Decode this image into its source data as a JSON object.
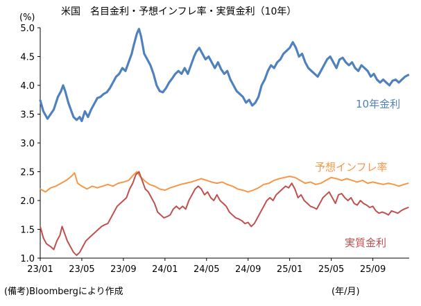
{
  "chart_data": {
    "type": "line",
    "title": "米国　名目金利・予想インフレ率・実質金利（10年）",
    "unit_label": "(%)",
    "source_note": "(備考)Bloombergにより作成",
    "xlabel": "(年/月)",
    "ylim": [
      1.0,
      5.0
    ],
    "y_ticks": [
      "5.0",
      "4.5",
      "4.0",
      "3.5",
      "3.0",
      "2.5",
      "2.0",
      "1.5",
      "1.0"
    ],
    "x_ticks": [
      "23/01",
      "23/05",
      "23/09",
      "24/01",
      "24/05",
      "24/09",
      "25/01",
      "25/05",
      "25/09"
    ],
    "x_tick_months": [
      0,
      4,
      8,
      12,
      16,
      20,
      24,
      28,
      32
    ],
    "x_range_months": [
      0,
      35.5
    ],
    "grid": false,
    "series": [
      {
        "name": "10年金利",
        "color": "#4f81bd",
        "points": [
          [
            0,
            3.74
          ],
          [
            0.3,
            3.55
          ],
          [
            0.7,
            3.42
          ],
          [
            1.0,
            3.5
          ],
          [
            1.3,
            3.58
          ],
          [
            1.7,
            3.8
          ],
          [
            2.0,
            3.9
          ],
          [
            2.2,
            4.0
          ],
          [
            2.4,
            3.9
          ],
          [
            2.7,
            3.7
          ],
          [
            3.0,
            3.55
          ],
          [
            3.2,
            3.45
          ],
          [
            3.5,
            3.4
          ],
          [
            3.8,
            3.45
          ],
          [
            4.0,
            3.38
          ],
          [
            4.3,
            3.55
          ],
          [
            4.6,
            3.45
          ],
          [
            4.9,
            3.58
          ],
          [
            5.2,
            3.68
          ],
          [
            5.5,
            3.78
          ],
          [
            5.8,
            3.8
          ],
          [
            6.1,
            3.85
          ],
          [
            6.4,
            3.88
          ],
          [
            6.7,
            3.95
          ],
          [
            7.0,
            4.05
          ],
          [
            7.3,
            4.15
          ],
          [
            7.6,
            4.2
          ],
          [
            7.9,
            4.3
          ],
          [
            8.2,
            4.25
          ],
          [
            8.5,
            4.4
          ],
          [
            8.8,
            4.55
          ],
          [
            9.0,
            4.7
          ],
          [
            9.3,
            4.9
          ],
          [
            9.5,
            4.98
          ],
          [
            9.7,
            4.85
          ],
          [
            10.0,
            4.55
          ],
          [
            10.3,
            4.45
          ],
          [
            10.6,
            4.35
          ],
          [
            10.9,
            4.2
          ],
          [
            11.2,
            4.0
          ],
          [
            11.5,
            3.9
          ],
          [
            11.8,
            3.88
          ],
          [
            12.1,
            3.95
          ],
          [
            12.4,
            4.05
          ],
          [
            12.7,
            4.12
          ],
          [
            13.0,
            4.2
          ],
          [
            13.3,
            4.25
          ],
          [
            13.6,
            4.2
          ],
          [
            13.9,
            4.3
          ],
          [
            14.2,
            4.2
          ],
          [
            14.5,
            4.35
          ],
          [
            14.8,
            4.5
          ],
          [
            15.0,
            4.58
          ],
          [
            15.3,
            4.65
          ],
          [
            15.6,
            4.55
          ],
          [
            15.9,
            4.45
          ],
          [
            16.2,
            4.5
          ],
          [
            16.5,
            4.4
          ],
          [
            16.8,
            4.3
          ],
          [
            17.1,
            4.4
          ],
          [
            17.4,
            4.28
          ],
          [
            17.7,
            4.2
          ],
          [
            18.0,
            4.25
          ],
          [
            18.3,
            4.1
          ],
          [
            18.6,
            4.0
          ],
          [
            18.9,
            3.9
          ],
          [
            19.2,
            3.85
          ],
          [
            19.5,
            3.8
          ],
          [
            19.8,
            3.7
          ],
          [
            20.1,
            3.75
          ],
          [
            20.4,
            3.65
          ],
          [
            20.7,
            3.7
          ],
          [
            21.0,
            3.8
          ],
          [
            21.3,
            4.0
          ],
          [
            21.6,
            4.1
          ],
          [
            21.9,
            4.25
          ],
          [
            22.2,
            4.35
          ],
          [
            22.5,
            4.3
          ],
          [
            22.8,
            4.4
          ],
          [
            23.1,
            4.45
          ],
          [
            23.4,
            4.55
          ],
          [
            23.7,
            4.6
          ],
          [
            24.0,
            4.65
          ],
          [
            24.3,
            4.75
          ],
          [
            24.6,
            4.65
          ],
          [
            24.9,
            4.5
          ],
          [
            25.2,
            4.55
          ],
          [
            25.5,
            4.4
          ],
          [
            25.8,
            4.3
          ],
          [
            26.1,
            4.25
          ],
          [
            26.4,
            4.2
          ],
          [
            26.7,
            4.15
          ],
          [
            27.0,
            4.25
          ],
          [
            27.3,
            4.35
          ],
          [
            27.6,
            4.45
          ],
          [
            27.9,
            4.5
          ],
          [
            28.2,
            4.4
          ],
          [
            28.5,
            4.3
          ],
          [
            28.8,
            4.45
          ],
          [
            29.1,
            4.48
          ],
          [
            29.4,
            4.4
          ],
          [
            29.7,
            4.35
          ],
          [
            30.0,
            4.4
          ],
          [
            30.3,
            4.3
          ],
          [
            30.6,
            4.25
          ],
          [
            30.9,
            4.35
          ],
          [
            31.2,
            4.3
          ],
          [
            31.5,
            4.25
          ],
          [
            31.8,
            4.15
          ],
          [
            32.1,
            4.2
          ],
          [
            32.4,
            4.1
          ],
          [
            32.7,
            4.05
          ],
          [
            33.0,
            4.1
          ],
          [
            33.3,
            4.05
          ],
          [
            33.6,
            4.0
          ],
          [
            33.9,
            4.08
          ],
          [
            34.2,
            4.1
          ],
          [
            34.5,
            4.05
          ],
          [
            34.8,
            4.1
          ],
          [
            35.1,
            4.15
          ],
          [
            35.4,
            4.18
          ]
        ]
      },
      {
        "name": "予想インフレ率",
        "color": "#f79646",
        "points": [
          [
            0,
            2.2
          ],
          [
            0.5,
            2.15
          ],
          [
            1.0,
            2.22
          ],
          [
            1.5,
            2.25
          ],
          [
            2.0,
            2.3
          ],
          [
            2.5,
            2.35
          ],
          [
            3.0,
            2.42
          ],
          [
            3.3,
            2.48
          ],
          [
            3.6,
            2.3
          ],
          [
            4.0,
            2.25
          ],
          [
            4.5,
            2.2
          ],
          [
            5.0,
            2.25
          ],
          [
            5.5,
            2.22
          ],
          [
            6.0,
            2.25
          ],
          [
            6.5,
            2.28
          ],
          [
            7.0,
            2.25
          ],
          [
            7.5,
            2.3
          ],
          [
            8.0,
            2.32
          ],
          [
            8.5,
            2.35
          ],
          [
            9.0,
            2.45
          ],
          [
            9.3,
            2.5
          ],
          [
            9.6,
            2.42
          ],
          [
            10.0,
            2.35
          ],
          [
            10.5,
            2.28
          ],
          [
            11.0,
            2.25
          ],
          [
            11.5,
            2.2
          ],
          [
            12.0,
            2.18
          ],
          [
            12.5,
            2.22
          ],
          [
            13.0,
            2.25
          ],
          [
            13.5,
            2.28
          ],
          [
            14.0,
            2.3
          ],
          [
            14.5,
            2.32
          ],
          [
            15.0,
            2.35
          ],
          [
            15.5,
            2.38
          ],
          [
            16.0,
            2.35
          ],
          [
            16.5,
            2.32
          ],
          [
            17.0,
            2.3
          ],
          [
            17.5,
            2.32
          ],
          [
            18.0,
            2.28
          ],
          [
            18.5,
            2.25
          ],
          [
            19.0,
            2.2
          ],
          [
            19.5,
            2.18
          ],
          [
            20.0,
            2.15
          ],
          [
            20.5,
            2.18
          ],
          [
            21.0,
            2.22
          ],
          [
            21.5,
            2.28
          ],
          [
            22.0,
            2.3
          ],
          [
            22.5,
            2.35
          ],
          [
            23.0,
            2.38
          ],
          [
            23.5,
            2.4
          ],
          [
            24.0,
            2.42
          ],
          [
            24.5,
            2.4
          ],
          [
            25.0,
            2.35
          ],
          [
            25.5,
            2.3
          ],
          [
            26.0,
            2.32
          ],
          [
            26.5,
            2.28
          ],
          [
            27.0,
            2.3
          ],
          [
            27.5,
            2.35
          ],
          [
            28.0,
            2.4
          ],
          [
            28.5,
            2.38
          ],
          [
            29.0,
            2.35
          ],
          [
            29.5,
            2.38
          ],
          [
            30.0,
            2.35
          ],
          [
            30.5,
            2.32
          ],
          [
            31.0,
            2.35
          ],
          [
            31.5,
            2.3
          ],
          [
            32.0,
            2.32
          ],
          [
            32.5,
            2.3
          ],
          [
            33.0,
            2.28
          ],
          [
            33.5,
            2.3
          ],
          [
            34.0,
            2.28
          ],
          [
            34.5,
            2.25
          ],
          [
            35.0,
            2.28
          ],
          [
            35.4,
            2.3
          ]
        ]
      },
      {
        "name": "実質金利",
        "color": "#c0504d",
        "points": [
          [
            0,
            1.55
          ],
          [
            0.3,
            1.35
          ],
          [
            0.6,
            1.25
          ],
          [
            1.0,
            1.2
          ],
          [
            1.3,
            1.15
          ],
          [
            1.6,
            1.3
          ],
          [
            1.9,
            1.4
          ],
          [
            2.1,
            1.55
          ],
          [
            2.3,
            1.45
          ],
          [
            2.6,
            1.3
          ],
          [
            2.9,
            1.2
          ],
          [
            3.2,
            1.1
          ],
          [
            3.5,
            1.05
          ],
          [
            3.8,
            1.1
          ],
          [
            4.1,
            1.2
          ],
          [
            4.4,
            1.3
          ],
          [
            4.7,
            1.35
          ],
          [
            5.0,
            1.4
          ],
          [
            5.3,
            1.45
          ],
          [
            5.6,
            1.5
          ],
          [
            5.9,
            1.55
          ],
          [
            6.2,
            1.58
          ],
          [
            6.5,
            1.6
          ],
          [
            6.8,
            1.7
          ],
          [
            7.1,
            1.8
          ],
          [
            7.4,
            1.9
          ],
          [
            7.7,
            1.95
          ],
          [
            8.0,
            2.0
          ],
          [
            8.3,
            2.05
          ],
          [
            8.6,
            2.2
          ],
          [
            8.9,
            2.3
          ],
          [
            9.2,
            2.45
          ],
          [
            9.5,
            2.5
          ],
          [
            9.8,
            2.35
          ],
          [
            10.1,
            2.2
          ],
          [
            10.4,
            2.15
          ],
          [
            10.7,
            2.05
          ],
          [
            11.0,
            1.95
          ],
          [
            11.3,
            1.8
          ],
          [
            11.6,
            1.75
          ],
          [
            11.9,
            1.7
          ],
          [
            12.2,
            1.72
          ],
          [
            12.5,
            1.75
          ],
          [
            12.8,
            1.85
          ],
          [
            13.1,
            1.9
          ],
          [
            13.4,
            1.85
          ],
          [
            13.7,
            1.9
          ],
          [
            14.0,
            1.85
          ],
          [
            14.3,
            2.0
          ],
          [
            14.6,
            2.1
          ],
          [
            14.9,
            2.2
          ],
          [
            15.2,
            2.25
          ],
          [
            15.5,
            2.2
          ],
          [
            15.8,
            2.1
          ],
          [
            16.1,
            2.15
          ],
          [
            16.4,
            2.05
          ],
          [
            16.7,
            2.0
          ],
          [
            17.0,
            2.1
          ],
          [
            17.3,
            2.0
          ],
          [
            17.6,
            1.95
          ],
          [
            17.9,
            1.9
          ],
          [
            18.2,
            1.8
          ],
          [
            18.5,
            1.75
          ],
          [
            18.8,
            1.7
          ],
          [
            19.1,
            1.68
          ],
          [
            19.4,
            1.65
          ],
          [
            19.7,
            1.6
          ],
          [
            20.0,
            1.62
          ],
          [
            20.3,
            1.55
          ],
          [
            20.6,
            1.6
          ],
          [
            20.9,
            1.7
          ],
          [
            21.2,
            1.8
          ],
          [
            21.5,
            1.9
          ],
          [
            21.8,
            2.0
          ],
          [
            22.1,
            2.05
          ],
          [
            22.4,
            2.0
          ],
          [
            22.7,
            2.1
          ],
          [
            23.0,
            2.15
          ],
          [
            23.3,
            2.2
          ],
          [
            23.6,
            2.25
          ],
          [
            23.9,
            2.22
          ],
          [
            24.2,
            2.3
          ],
          [
            24.5,
            2.2
          ],
          [
            24.8,
            2.05
          ],
          [
            25.1,
            2.1
          ],
          [
            25.4,
            2.0
          ],
          [
            25.7,
            1.95
          ],
          [
            26.0,
            1.9
          ],
          [
            26.3,
            1.88
          ],
          [
            26.6,
            1.85
          ],
          [
            26.9,
            1.95
          ],
          [
            27.2,
            2.05
          ],
          [
            27.5,
            2.1
          ],
          [
            27.8,
            2.15
          ],
          [
            28.1,
            2.05
          ],
          [
            28.4,
            1.95
          ],
          [
            28.7,
            2.1
          ],
          [
            29.0,
            2.12
          ],
          [
            29.3,
            2.05
          ],
          [
            29.6,
            2.0
          ],
          [
            29.9,
            2.05
          ],
          [
            30.2,
            1.95
          ],
          [
            30.5,
            1.92
          ],
          [
            30.8,
            2.0
          ],
          [
            31.1,
            1.95
          ],
          [
            31.4,
            1.92
          ],
          [
            31.7,
            1.88
          ],
          [
            32.0,
            1.9
          ],
          [
            32.3,
            1.82
          ],
          [
            32.6,
            1.78
          ],
          [
            32.9,
            1.8
          ],
          [
            33.2,
            1.78
          ],
          [
            33.5,
            1.75
          ],
          [
            33.8,
            1.82
          ],
          [
            34.1,
            1.8
          ],
          [
            34.4,
            1.78
          ],
          [
            34.7,
            1.82
          ],
          [
            35.0,
            1.85
          ],
          [
            35.4,
            1.88
          ]
        ]
      }
    ]
  }
}
